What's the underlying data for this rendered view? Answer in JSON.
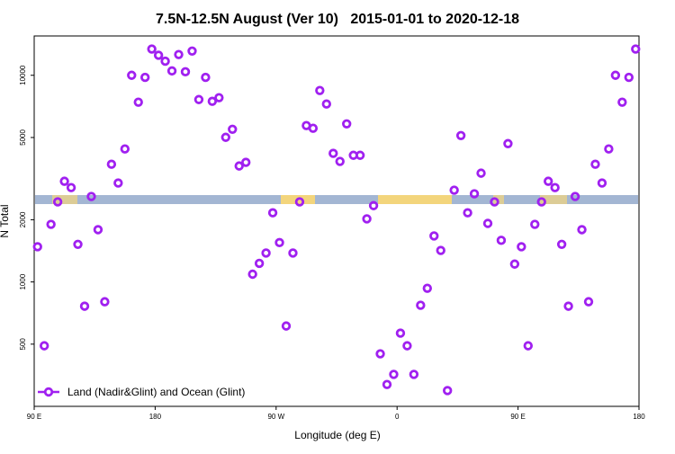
{
  "chart_data": {
    "type": "scatter",
    "title": "7.5N-12.5N August (Ver 10)   2015-01-01 to 2020-12-18",
    "x_label": "Longitude (deg E)",
    "y_label": "N Total",
    "log_y": true,
    "legend": "lower left",
    "xlim": [
      90,
      540
    ],
    "xticks": [
      {
        "value": 90,
        "label": "90 E"
      },
      180,
      {
        "value": 270,
        "label": "90 W"
      },
      {
        "value": 360,
        "label": "0"
      },
      {
        "value": 450,
        "label": "90 E"
      },
      {
        "value": 540,
        "label": "180"
      }
    ],
    "ylim": [
      250,
      15500
    ],
    "yticks": [
      500,
      1000,
      2000,
      5000,
      10000
    ],
    "series": [
      {
        "name": "Land (Nadir&Glint) and Ocean (Glint)",
        "color": "#a020f0",
        "x": [
          92.5,
          97.5,
          102.5,
          107.5,
          112.5,
          117.5,
          122.5,
          127.5,
          132.5,
          137.5,
          142.5,
          147.5,
          152.5,
          157.5,
          162.5,
          167.5,
          172.5,
          177.5,
          182.5,
          187.5,
          192.5,
          197.5,
          202.5,
          207.5,
          212.5,
          217.5,
          222.5,
          227.5,
          232.5,
          237.5,
          242.5,
          247.5,
          252.5,
          257.5,
          262.5,
          267.5,
          272.5,
          277.5,
          282.5,
          287.5,
          292.5,
          297.5,
          302.5,
          307.5,
          312.5,
          317.5,
          322.5,
          327.5,
          332.5,
          337.5,
          342.5,
          347.5,
          352.5,
          357.5,
          362.5,
          367.5,
          372.5,
          377.5,
          382.5,
          387.5,
          392.5,
          397.5,
          402.5,
          407.5,
          412.5,
          417.5,
          422.5,
          427.5,
          432.5,
          437.5,
          442.5,
          447.5,
          452.5,
          457.5,
          462.5,
          467.5,
          472.5,
          477.5,
          482.5,
          487.5,
          492.5,
          497.5,
          502.5,
          507.5,
          512.5,
          517.5,
          522.5,
          527.5,
          532.5,
          537.5
        ],
        "values": [
          1480,
          491,
          1900,
          2440,
          3070,
          2860,
          1520,
          763,
          2590,
          1790,
          802,
          3710,
          3010,
          4400,
          10000,
          7410,
          9770,
          13400,
          12500,
          11700,
          10500,
          12600,
          10400,
          13100,
          7630,
          9770,
          7480,
          7790,
          5010,
          5480,
          3640,
          3790,
          1090,
          1230,
          1380,
          2160,
          1550,
          612,
          1380,
          2440,
          5710,
          5540,
          8440,
          7260,
          4190,
          3830,
          5820,
          4100,
          4100,
          2020,
          2340,
          449,
          319,
          357,
          565,
          491,
          357,
          771,
          932,
          1670,
          1420,
          298,
          2780,
          5110,
          2160,
          2670,
          3360,
          1920,
          2440,
          1590,
          4670,
          1220,
          1480,
          491,
          1900,
          2440,
          3070,
          2860,
          1520,
          763,
          2590,
          1790,
          802,
          3710,
          3010,
          4400,
          10000,
          7410,
          9770,
          13400
        ]
      }
    ]
  }
}
